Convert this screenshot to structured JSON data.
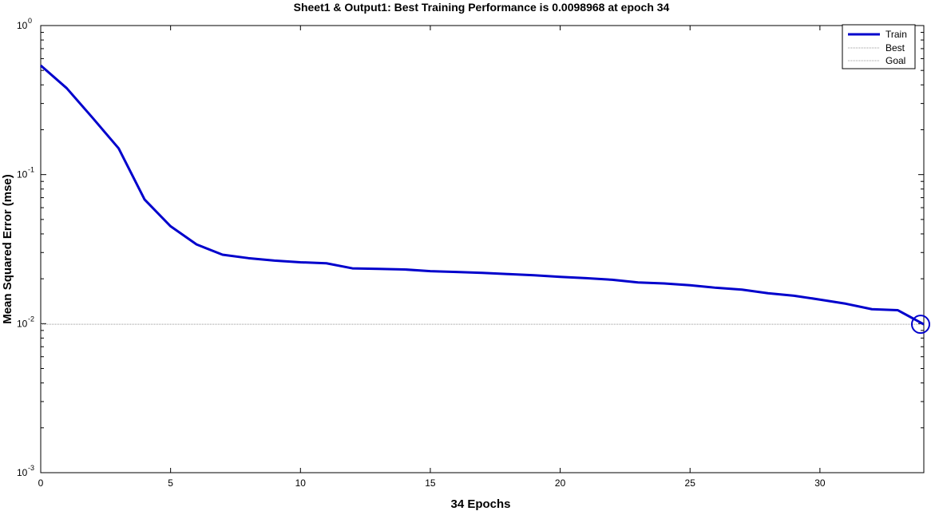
{
  "chart_data": {
    "type": "line",
    "title": "Sheet1 & Output1: Best Training Performance is 0.0098968 at epoch 34",
    "xlabel": "34 Epochs",
    "ylabel": "Mean Squared Error  (mse)",
    "xlim": [
      0,
      34
    ],
    "ylim": [
      0.001,
      1
    ],
    "yscale": "log",
    "x_ticks": [
      0,
      5,
      10,
      15,
      20,
      25,
      30
    ],
    "y_ticks": [
      {
        "base": "10",
        "exp": "0",
        "value": 1
      },
      {
        "base": "10",
        "exp": "-1",
        "value": 0.1
      },
      {
        "base": "10",
        "exp": "-2",
        "value": 0.01
      },
      {
        "base": "10",
        "exp": "-3",
        "value": 0.001
      }
    ],
    "grid": false,
    "legend_position": "top-right",
    "legend": [
      "Train",
      "Best",
      "Goal"
    ],
    "series": [
      {
        "name": "Train",
        "color": "#0000CC",
        "x": [
          0,
          1,
          2,
          3,
          4,
          5,
          6,
          7,
          8,
          9,
          10,
          11,
          12,
          13,
          14,
          15,
          16,
          17,
          18,
          19,
          20,
          21,
          22,
          23,
          24,
          25,
          26,
          27,
          28,
          29,
          30,
          31,
          32,
          33,
          34
        ],
        "y": [
          0.54,
          0.38,
          0.24,
          0.15,
          0.068,
          0.045,
          0.034,
          0.029,
          0.0275,
          0.0265,
          0.0258,
          0.0254,
          0.0235,
          0.0233,
          0.0231,
          0.0225,
          0.0222,
          0.0219,
          0.0215,
          0.0211,
          0.0206,
          0.0202,
          0.0197,
          0.0189,
          0.0186,
          0.0181,
          0.0174,
          0.0169,
          0.016,
          0.0154,
          0.0145,
          0.0136,
          0.0125,
          0.0123,
          0.0098968
        ]
      }
    ],
    "best": {
      "name": "Best",
      "epoch": 34,
      "value": 0.0098968,
      "color": "#0000CC"
    },
    "goal": {
      "name": "Goal",
      "value": 0,
      "color": "#888888"
    }
  }
}
